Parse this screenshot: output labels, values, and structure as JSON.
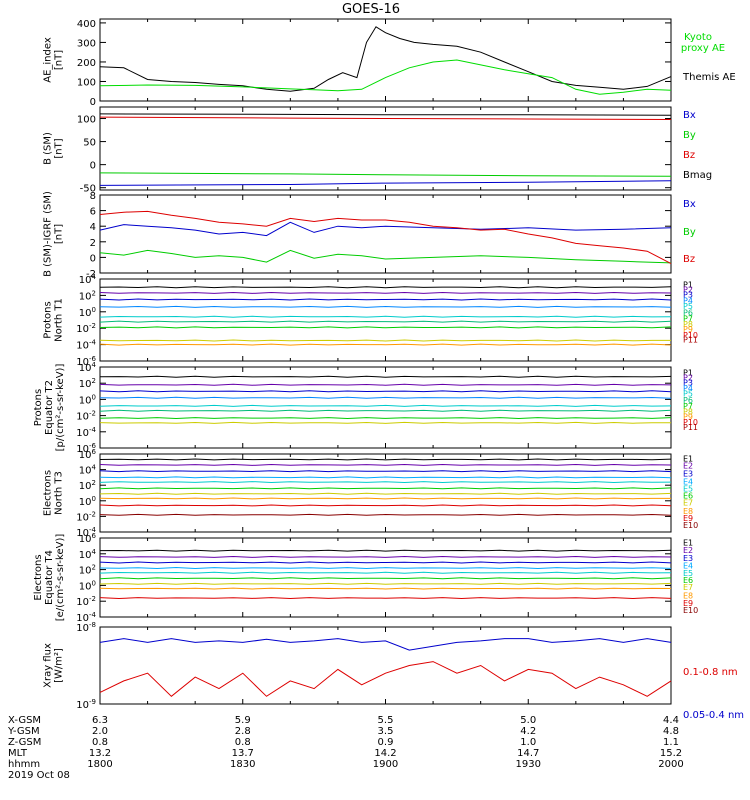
{
  "title": "GOES-16",
  "date_label": "2019 Oct 08",
  "time_axis": {
    "range": [
      1800,
      2000
    ],
    "rows": [
      {
        "label": "X-GSM",
        "values": [
          "6.3",
          "5.9",
          "5.5",
          "5.0",
          "4.4"
        ]
      },
      {
        "label": "Y-GSM",
        "values": [
          "2.0",
          "2.8",
          "3.5",
          "4.2",
          "4.8"
        ]
      },
      {
        "label": "Z-GSM",
        "values": [
          "0.8",
          "0.8",
          "0.9",
          "1.0",
          "1.1"
        ]
      },
      {
        "label": "MLT",
        "values": [
          "13.2",
          "13.7",
          "14.2",
          "14.7",
          "15.2"
        ]
      },
      {
        "label": "hhmm",
        "values": [
          "1800",
          "1830",
          "1900",
          "1930",
          "2000"
        ]
      }
    ]
  },
  "chart_data": [
    {
      "type": "line",
      "panel": "ae",
      "ylabel": [
        "AE_index",
        "[nT]"
      ],
      "ylim": [
        0,
        420
      ],
      "yticks": [
        0,
        100,
        200,
        300,
        400
      ],
      "series": [
        {
          "name": "Themis AE",
          "color": "#000000",
          "x": [
            1800,
            1805,
            1810,
            1815,
            1820,
            1825,
            1830,
            1835,
            1840,
            1845,
            1848,
            1851,
            1854,
            1856,
            1858,
            1900,
            1903,
            1906,
            1910,
            1915,
            1920,
            1925,
            1930,
            1935,
            1940,
            1945,
            1950,
            1955,
            2000
          ],
          "y": [
            175,
            170,
            110,
            100,
            95,
            85,
            78,
            60,
            50,
            65,
            110,
            145,
            120,
            300,
            380,
            350,
            320,
            300,
            290,
            280,
            250,
            200,
            150,
            100,
            80,
            70,
            60,
            75,
            125
          ]
        },
        {
          "name": "Kyoto proxy AE",
          "color": "#00dd00",
          "x": [
            1800,
            1810,
            1820,
            1830,
            1840,
            1845,
            1850,
            1855,
            1900,
            1905,
            1910,
            1915,
            1920,
            1925,
            1930,
            1935,
            1940,
            1945,
            1950,
            1955,
            2000
          ],
          "y": [
            78,
            82,
            80,
            72,
            62,
            58,
            52,
            60,
            120,
            170,
            200,
            210,
            185,
            160,
            140,
            120,
            60,
            35,
            45,
            60,
            55
          ]
        }
      ]
    },
    {
      "type": "line",
      "panel": "bsm",
      "ylabel": [
        "B (SM)",
        "[nT]"
      ],
      "ylim": [
        -55,
        125
      ],
      "yticks": [
        -50,
        0,
        50,
        100
      ],
      "series": [
        {
          "name": "Bx",
          "color": "#0000cc",
          "x": [
            1800,
            1840,
            1900,
            1930,
            2000
          ],
          "y": [
            -45,
            -43,
            -40,
            -38,
            -35
          ]
        },
        {
          "name": "By",
          "color": "#00cc00",
          "x": [
            1800,
            1840,
            1900,
            1930,
            2000
          ],
          "y": [
            -18,
            -20,
            -22,
            -24,
            -25
          ]
        },
        {
          "name": "Bz",
          "color": "#dd0000",
          "x": [
            1800,
            1840,
            1900,
            1930,
            2000
          ],
          "y": [
            103,
            101,
            100,
            99,
            98
          ]
        },
        {
          "name": "Bmag",
          "color": "#000000",
          "x": [
            1800,
            1840,
            1900,
            1930,
            2000
          ],
          "y": [
            110,
            109,
            108,
            108,
            107
          ]
        }
      ]
    },
    {
      "type": "line",
      "panel": "bdiff",
      "ylabel": [
        "B (SM)-IGRF (SM)",
        "[nT]"
      ],
      "ylim": [
        -2,
        8
      ],
      "yticks": [
        -2,
        0,
        2,
        4,
        6,
        8
      ],
      "series": [
        {
          "name": "Bx",
          "color": "#0000cc",
          "x": [
            1800,
            1805,
            1810,
            1815,
            1820,
            1825,
            1830,
            1835,
            1840,
            1845,
            1850,
            1855,
            1900,
            1910,
            1920,
            1930,
            1940,
            1950,
            2000
          ],
          "y": [
            3.5,
            4.2,
            4.0,
            3.8,
            3.5,
            3.0,
            3.2,
            2.8,
            4.5,
            3.2,
            4.0,
            3.8,
            4.0,
            3.8,
            3.6,
            3.8,
            3.5,
            3.6,
            3.8
          ]
        },
        {
          "name": "By",
          "color": "#00cc00",
          "x": [
            1800,
            1805,
            1810,
            1815,
            1820,
            1825,
            1830,
            1835,
            1840,
            1845,
            1850,
            1855,
            1900,
            1910,
            1920,
            1930,
            1940,
            1950,
            2000
          ],
          "y": [
            0.6,
            0.3,
            0.9,
            0.5,
            0.0,
            0.2,
            0.0,
            -0.6,
            0.9,
            -0.1,
            0.4,
            0.2,
            -0.2,
            0.0,
            0.2,
            0.0,
            -0.3,
            -0.5,
            -0.7
          ]
        },
        {
          "name": "Bz",
          "color": "#dd0000",
          "x": [
            1800,
            1805,
            1810,
            1815,
            1820,
            1825,
            1830,
            1835,
            1840,
            1845,
            1850,
            1855,
            1900,
            1905,
            1910,
            1915,
            1920,
            1925,
            1930,
            1935,
            1940,
            1945,
            1950,
            1955,
            2000
          ],
          "y": [
            5.5,
            5.8,
            5.9,
            5.4,
            5.0,
            4.5,
            4.3,
            4.0,
            5.0,
            4.6,
            5.0,
            4.8,
            4.8,
            4.5,
            4.0,
            3.8,
            3.5,
            3.6,
            3.0,
            2.5,
            1.8,
            1.5,
            1.2,
            0.8,
            -0.8
          ]
        }
      ]
    },
    {
      "type": "line",
      "panel": "protons_north",
      "ylabel": [
        "Protons",
        "North T1"
      ],
      "yscale": "log",
      "ylim_exp": [
        -6,
        4
      ],
      "ytick_exps": [
        -6,
        -4,
        -2,
        0,
        2,
        4
      ],
      "legend_y_exps": [
        3.3,
        2.7,
        2.1,
        1.4,
        0.7,
        -0.1,
        -0.8,
        -1.5,
        -2.1,
        -2.8,
        -3.4
      ],
      "series": [
        {
          "name": "P1",
          "color": "#000000",
          "level": 3.0
        },
        {
          "name": "P2",
          "color": "#6600aa",
          "level": 2.3
        },
        {
          "name": "P3",
          "color": "#0000cc",
          "level": 1.5
        },
        {
          "name": "P4",
          "color": "#0088ff",
          "level": 0.6
        },
        {
          "name": "P5",
          "color": "#00cccc",
          "level": -0.6
        },
        {
          "name": "P6",
          "color": "#00bb77",
          "level": -1.2
        },
        {
          "name": "P7",
          "color": "#00cc00",
          "level": -1.9
        },
        {
          "name": "P8",
          "color": "#cccc00",
          "level": -3.5
        },
        {
          "name": "P9",
          "color": "#ff9900",
          "level": -4.0
        },
        {
          "name": "P10",
          "color": "#dd0000",
          "level": null
        },
        {
          "name": "P11",
          "color": "#aa0000",
          "level": null
        }
      ]
    },
    {
      "type": "line",
      "panel": "protons_equator",
      "ylabel": [
        "Protons",
        "Equator T2",
        "[p/(cm²-s-sr-keV)]"
      ],
      "yscale": "log",
      "ylim_exp": [
        -6,
        4
      ],
      "ytick_exps": [
        -6,
        -4,
        -2,
        0,
        2,
        4
      ],
      "legend_y_exps": [
        3.3,
        2.7,
        2.1,
        1.4,
        0.7,
        -0.1,
        -0.8,
        -1.5,
        -2.1,
        -2.8,
        -3.4
      ],
      "series": [
        {
          "name": "P1",
          "color": "#000000",
          "level": 2.8
        },
        {
          "name": "P2",
          "color": "#6600aa",
          "level": 1.8
        },
        {
          "name": "P3",
          "color": "#0000cc",
          "level": 1.0
        },
        {
          "name": "P4",
          "color": "#0088ff",
          "level": 0.2
        },
        {
          "name": "P5",
          "color": "#00cccc",
          "level": -0.8
        },
        {
          "name": "P6",
          "color": "#00bb77",
          "level": -1.4
        },
        {
          "name": "P7",
          "color": "#00cc00",
          "level": -2.3
        },
        {
          "name": "P8",
          "color": "#cccc00",
          "level": -2.9
        },
        {
          "name": "P9",
          "color": "#ff9900",
          "level": null
        },
        {
          "name": "P10",
          "color": "#dd0000",
          "level": null
        },
        {
          "name": "P11",
          "color": "#aa0000",
          "level": null
        }
      ]
    },
    {
      "type": "line",
      "panel": "electrons_north",
      "ylabel": [
        "Electrons",
        "North T3"
      ],
      "yscale": "log",
      "ylim_exp": [
        -4,
        6
      ],
      "ytick_exps": [
        -4,
        -2,
        0,
        2,
        4,
        6
      ],
      "legend_y_exps": [
        5.4,
        4.5,
        3.5,
        2.5,
        1.6,
        0.7,
        -0.2,
        -1.3,
        -2.2,
        -3.1
      ],
      "series": [
        {
          "name": "E1",
          "color": "#000000",
          "level": 5.3
        },
        {
          "name": "E2",
          "color": "#6600aa",
          "level": 4.6
        },
        {
          "name": "E3",
          "color": "#0000cc",
          "level": 3.8
        },
        {
          "name": "E4",
          "color": "#00aaff",
          "level": 3.0
        },
        {
          "name": "E5",
          "color": "#00cccc",
          "level": 2.4
        },
        {
          "name": "E6",
          "color": "#00cc00",
          "level": 1.6
        },
        {
          "name": "E7",
          "color": "#cccc00",
          "level": 0.9
        },
        {
          "name": "E8",
          "color": "#ff9900",
          "level": 0.3
        },
        {
          "name": "E9",
          "color": "#dd0000",
          "level": -0.6
        },
        {
          "name": "E10",
          "color": "#880000",
          "level": -1.8
        }
      ]
    },
    {
      "type": "line",
      "panel": "electrons_equator",
      "ylabel": [
        "Electrons",
        "Equator T4",
        "[e/(cm²-s-sr-keV)]"
      ],
      "yscale": "log",
      "ylim_exp": [
        -4,
        6
      ],
      "ytick_exps": [
        -4,
        -2,
        0,
        2,
        4,
        6
      ],
      "legend_y_exps": [
        5.4,
        4.5,
        3.5,
        2.5,
        1.6,
        0.7,
        -0.2,
        -1.3,
        -2.2,
        -3.1
      ],
      "series": [
        {
          "name": "E1",
          "color": "#000000",
          "level": 4.4
        },
        {
          "name": "E2",
          "color": "#6600aa",
          "level": 3.6
        },
        {
          "name": "E3",
          "color": "#0000cc",
          "level": 2.9
        },
        {
          "name": "E4",
          "color": "#00aaff",
          "level": 2.2
        },
        {
          "name": "E5",
          "color": "#00cccc",
          "level": 1.6
        },
        {
          "name": "E6",
          "color": "#00cc00",
          "level": 0.9
        },
        {
          "name": "E7",
          "color": "#cccc00",
          "level": 0.2
        },
        {
          "name": "E8",
          "color": "#ff9900",
          "level": -0.4
        },
        {
          "name": "E9",
          "color": "#dd0000",
          "level": -1.6
        },
        {
          "name": "E10",
          "color": "#880000",
          "level": null
        }
      ]
    },
    {
      "type": "line",
      "panel": "xray",
      "ylabel": [
        "Xray flux",
        "[W/m²]"
      ],
      "yscale": "log",
      "ylim_exp": [
        -9,
        -8
      ],
      "ytick_exps": [
        -9,
        -8
      ],
      "series": [
        {
          "name": "0.1-0.8 nm",
          "color": "#dd0000",
          "x": [
            1800,
            1805,
            1810,
            1815,
            1820,
            1825,
            1830,
            1835,
            1840,
            1845,
            1850,
            1855,
            1900,
            1905,
            1910,
            1915,
            1920,
            1925,
            1930,
            1935,
            1940,
            1945,
            1950,
            1955,
            2000
          ],
          "y": [
            -8.85,
            -8.7,
            -8.6,
            -8.9,
            -8.65,
            -8.8,
            -8.6,
            -8.9,
            -8.7,
            -8.8,
            -8.55,
            -8.75,
            -8.6,
            -8.5,
            -8.45,
            -8.6,
            -8.5,
            -8.7,
            -8.55,
            -8.6,
            -8.8,
            -8.65,
            -8.75,
            -8.9,
            -8.7
          ]
        },
        {
          "name": "0.05-0.4 nm",
          "color": "#0000cc",
          "x": [
            1800,
            1805,
            1810,
            1815,
            1820,
            1825,
            1830,
            1835,
            1840,
            1845,
            1850,
            1855,
            1900,
            1905,
            1910,
            1915,
            1920,
            1925,
            1930,
            1935,
            1940,
            1945,
            1950,
            1955,
            2000
          ],
          "y": [
            -8.2,
            -8.15,
            -8.2,
            -8.15,
            -8.2,
            -8.18,
            -8.2,
            -8.16,
            -8.2,
            -8.18,
            -8.15,
            -8.2,
            -8.18,
            -8.3,
            -8.25,
            -8.2,
            -8.18,
            -8.15,
            -8.15,
            -8.2,
            -8.18,
            -8.15,
            -8.2,
            -8.15,
            -8.2
          ]
        }
      ]
    }
  ]
}
